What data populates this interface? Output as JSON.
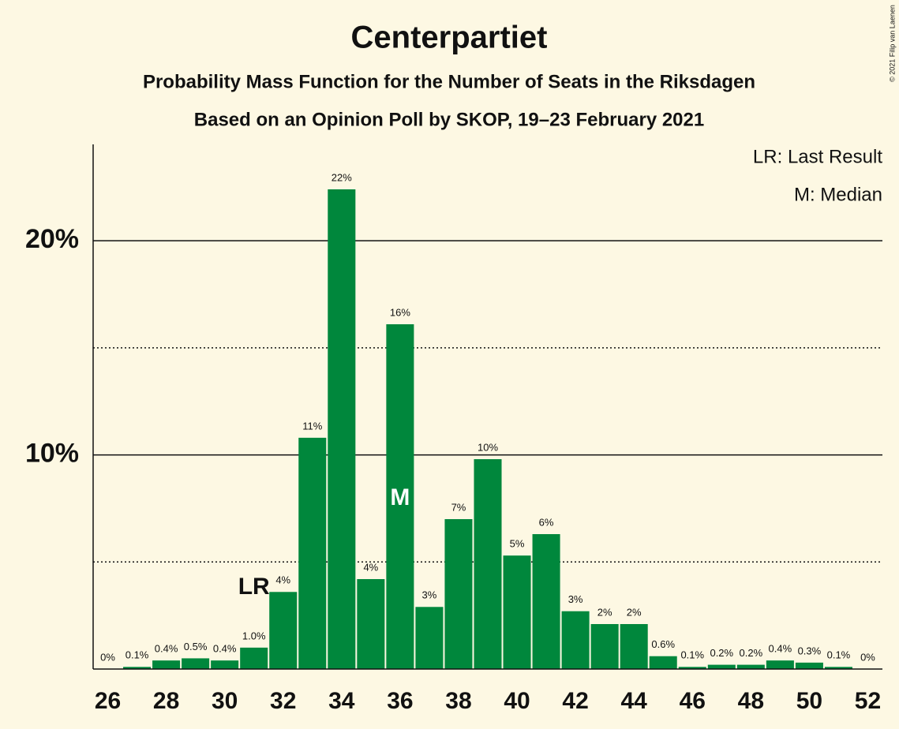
{
  "chart_data": {
    "type": "bar",
    "title": "Centerpartiet",
    "subtitle": "Probability Mass Function for the Number of Seats in the Riksdagen",
    "subtitle2": "Based on an Opinion Poll by SKOP, 19–23 February 2021",
    "copyright": "© 2021 Filip van Laenen",
    "legend": [
      "LR: Last Result",
      "M: Median"
    ],
    "x": [
      26,
      27,
      28,
      29,
      30,
      31,
      32,
      33,
      34,
      35,
      36,
      37,
      38,
      39,
      40,
      41,
      42,
      43,
      44,
      45,
      46,
      47,
      48,
      49,
      50,
      51,
      52
    ],
    "values": [
      0,
      0.1,
      0.4,
      0.5,
      0.4,
      1.0,
      3.6,
      10.8,
      22.4,
      4.2,
      16.1,
      2.9,
      7.0,
      9.8,
      5.3,
      6.3,
      2.7,
      2.1,
      2.1,
      0.6,
      0.1,
      0.2,
      0.2,
      0.4,
      0.3,
      0.1,
      0
    ],
    "value_labels": [
      "0%",
      "0.1%",
      "0.4%",
      "0.5%",
      "0.4%",
      "1.0%",
      "4%",
      "11%",
      "22%",
      "4%",
      "16%",
      "3%",
      "7%",
      "10%",
      "5%",
      "6%",
      "3%",
      "2%",
      "2%",
      "0.6%",
      "0.1%",
      "0.2%",
      "0.2%",
      "0.4%",
      "0.3%",
      "0.1%",
      "0%"
    ],
    "color": "#00873c",
    "xlim": [
      25.5,
      52.5
    ],
    "xticks": [
      26,
      28,
      30,
      32,
      34,
      36,
      38,
      40,
      42,
      44,
      46,
      48,
      50,
      52
    ],
    "ylim": [
      0,
      24.5
    ],
    "yticks": [
      {
        "value": 10,
        "label": "10%"
      },
      {
        "value": 20,
        "label": "20%"
      }
    ],
    "yminor": [
      5,
      15
    ],
    "annotations": [
      {
        "text": "LR",
        "x": 31
      },
      {
        "text": "M",
        "x": 36
      }
    ]
  }
}
